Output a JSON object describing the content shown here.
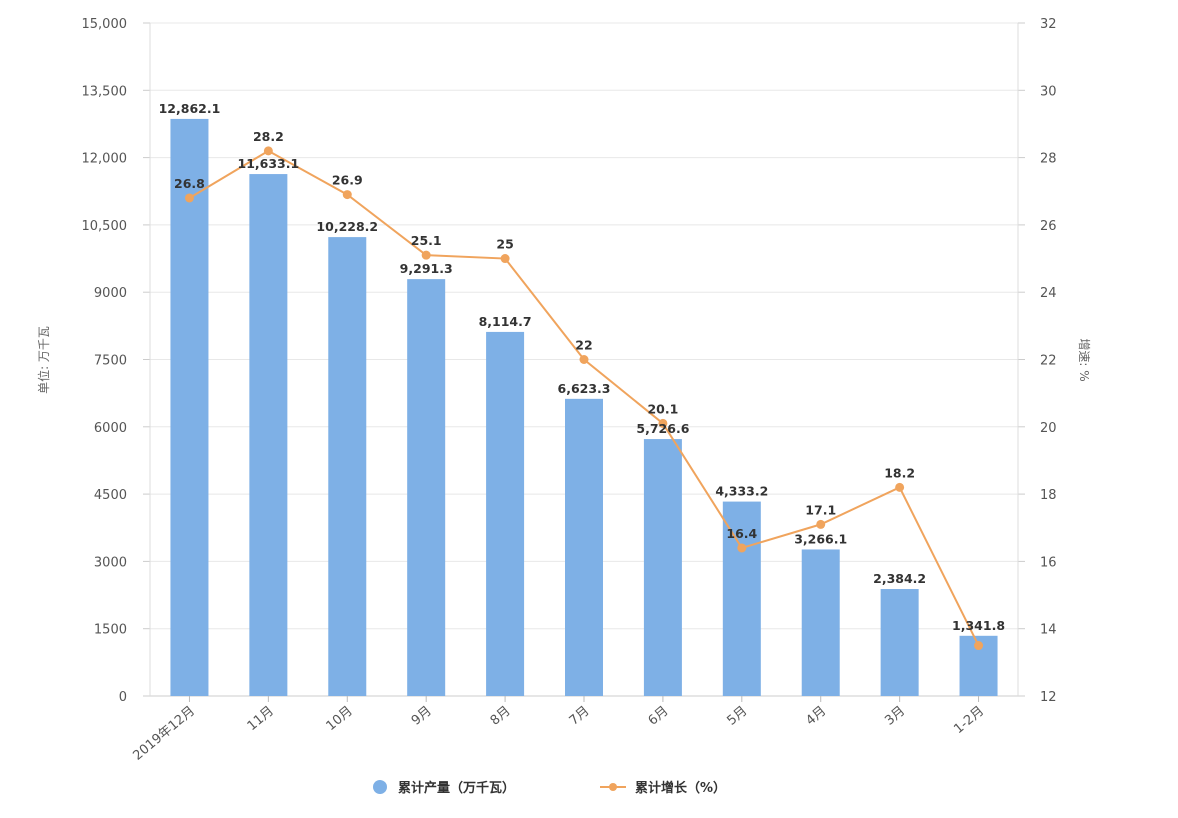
{
  "chart_data": {
    "type": "bar",
    "categories": [
      "2019年12月",
      "11月",
      "10月",
      "9月",
      "8月",
      "7月",
      "6月",
      "5月",
      "4月",
      "3月",
      "1-2月"
    ],
    "series": [
      {
        "name": "累计产量（万千瓦）",
        "type": "bar",
        "axis": "left",
        "color": "#7eb0e6",
        "values": [
          12862.1,
          11633.1,
          10228.2,
          9291.3,
          8114.7,
          6623.3,
          5726.6,
          4333.2,
          3266.1,
          2384.2,
          1341.8
        ],
        "labels": [
          "12,862.1",
          "11,633.1",
          "10,228.2",
          "9,291.3",
          "8,114.7",
          "6,623.3",
          "5,726.6",
          "4,333.2",
          "3,266.1",
          "2,384.2",
          "1,341.8"
        ]
      },
      {
        "name": "累计增长（%）",
        "type": "line",
        "axis": "right",
        "color": "#f0a45d",
        "values": [
          26.8,
          28.2,
          26.9,
          25.1,
          25,
          22,
          20.1,
          16.4,
          17.1,
          18.2,
          13.5
        ],
        "labels": [
          "26.8",
          "28.2",
          "26.9",
          "25.1",
          "25",
          "22",
          "20.1",
          "16.4",
          "17.1",
          "18.2",
          ""
        ]
      }
    ],
    "ylabel_left": "单位: 万千瓦",
    "ylabel_right": "增速: %",
    "ylim_left": [
      0,
      15000
    ],
    "yticks_left": [
      "0",
      "1500",
      "3000",
      "4500",
      "6000",
      "7500",
      "9000",
      "10,500",
      "12,000",
      "13,500",
      "15,000"
    ],
    "ylim_right": [
      12,
      32
    ],
    "yticks_right": [
      "12",
      "14",
      "16",
      "18",
      "20",
      "22",
      "24",
      "26",
      "28",
      "30",
      "32"
    ],
    "grid": true,
    "legend": "bottom"
  }
}
